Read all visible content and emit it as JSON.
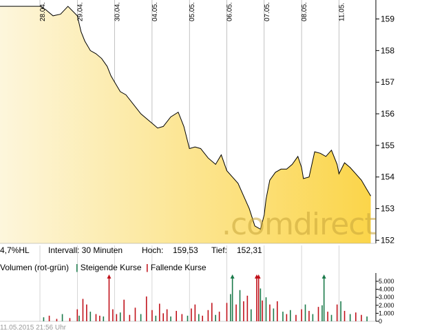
{
  "watermark": ".comdirect",
  "info_bar": {
    "range": "4,7%HL",
    "interval": "Intervall: 30 Minuten",
    "high_label": "Hoch:",
    "high_value": "159,53",
    "low_label": "Tief:",
    "low_value": "152,31"
  },
  "volume_panel": {
    "title": "Volumen (rot-grün)",
    "legend_up": "Steigende Kurse",
    "legend_down": "Fallende Kurse"
  },
  "footer_timestamp": "11.05.2015 21:56 Uhr",
  "colors": {
    "line": "#000000",
    "fill_left": "#fdf6dc",
    "fill_right": "#fbd54a",
    "up": "#1a7a4a",
    "down": "#c0111a",
    "grid": "#999999"
  },
  "chart_data": [
    {
      "type": "area",
      "x_labels": [
        "28.04.",
        "29.04.",
        "30.04.",
        "04.05.",
        "05.05.",
        "06.05.",
        "07.05.",
        "08.05.",
        "11.05."
      ],
      "y_ticks": [
        152,
        153,
        154,
        155,
        156,
        157,
        158,
        159
      ],
      "ylim": [
        151.9,
        159.6
      ],
      "high": 159.53,
      "low": 152.31,
      "series": [
        {
          "x": [
            0,
            0.15,
            0.35,
            0.55,
            0.75,
            1.0,
            1.1,
            1.2,
            1.35,
            1.5,
            1.65,
            1.8,
            1.9,
            2.0,
            2.15,
            2.3,
            2.5,
            2.7,
            2.9,
            3.0,
            3.15,
            3.3,
            3.5,
            3.7,
            3.85,
            4.0,
            4.15,
            4.3,
            4.5,
            4.7,
            4.85,
            5.0,
            5.15,
            5.3,
            5.45,
            5.6,
            5.75,
            5.9,
            6.0,
            6.05,
            6.15,
            6.3,
            6.45,
            6.6,
            6.75,
            6.9,
            7.0,
            7.05,
            7.2,
            7.35,
            7.5,
            7.65,
            7.8,
            7.95,
            8.0,
            8.15,
            8.3,
            8.45,
            8.6,
            8.75,
            8.85
          ],
          "y": [
            159.4,
            159.3,
            159.1,
            159.15,
            159.4,
            159.1,
            158.6,
            158.3,
            158.0,
            157.9,
            157.75,
            157.5,
            157.2,
            157.0,
            156.7,
            156.6,
            156.3,
            156.0,
            155.8,
            155.7,
            155.55,
            155.6,
            155.9,
            156.05,
            155.6,
            154.9,
            154.95,
            154.9,
            154.6,
            154.4,
            154.7,
            154.2,
            154.0,
            153.8,
            153.4,
            153.0,
            152.45,
            152.35,
            152.8,
            153.3,
            153.9,
            154.15,
            154.25,
            154.25,
            154.4,
            154.65,
            154.3,
            153.95,
            154.0,
            154.8,
            154.75,
            154.65,
            154.85,
            154.4,
            154.1,
            154.45,
            154.3,
            154.1,
            153.9,
            153.6,
            153.4
          ]
        }
      ]
    },
    {
      "type": "bar",
      "title": "Volumen (rot-grün)",
      "y_ticks": [
        "0",
        "1.000",
        "2.000",
        "3.000",
        "4.000",
        "5.000"
      ],
      "ylim": [
        0,
        5000
      ],
      "legend": [
        "Steigende Kurse",
        "Fallende Kurse"
      ],
      "volumes": [
        [
          0.1,
          500,
          "up"
        ],
        [
          0.25,
          700,
          "down"
        ],
        [
          0.45,
          300,
          "down"
        ],
        [
          0.6,
          900,
          "up"
        ],
        [
          0.8,
          400,
          "down"
        ],
        [
          1.0,
          1500,
          "down"
        ],
        [
          1.05,
          700,
          "up"
        ],
        [
          1.15,
          2800,
          "down"
        ],
        [
          1.25,
          2100,
          "down"
        ],
        [
          1.35,
          1200,
          "up"
        ],
        [
          1.5,
          900,
          "down"
        ],
        [
          1.6,
          700,
          "down"
        ],
        [
          1.7,
          600,
          "up"
        ],
        [
          1.85,
          6000,
          "down"
        ],
        [
          1.95,
          1500,
          "down"
        ],
        [
          2.05,
          900,
          "down"
        ],
        [
          2.15,
          1100,
          "up"
        ],
        [
          2.25,
          2700,
          "down"
        ],
        [
          2.4,
          800,
          "down"
        ],
        [
          2.55,
          1700,
          "down"
        ],
        [
          2.7,
          900,
          "up"
        ],
        [
          2.85,
          3100,
          "down"
        ],
        [
          3.0,
          1400,
          "down"
        ],
        [
          3.1,
          700,
          "up"
        ],
        [
          3.2,
          2200,
          "down"
        ],
        [
          3.3,
          1000,
          "down"
        ],
        [
          3.4,
          1500,
          "down"
        ],
        [
          3.5,
          600,
          "up"
        ],
        [
          3.65,
          1300,
          "down"
        ],
        [
          3.8,
          900,
          "down"
        ],
        [
          3.95,
          700,
          "up"
        ],
        [
          4.05,
          1600,
          "down"
        ],
        [
          4.15,
          2100,
          "down"
        ],
        [
          4.25,
          900,
          "up"
        ],
        [
          4.35,
          700,
          "down"
        ],
        [
          4.5,
          1400,
          "down"
        ],
        [
          4.6,
          2300,
          "down"
        ],
        [
          4.7,
          800,
          "up"
        ],
        [
          4.8,
          1200,
          "down"
        ],
        [
          5.0,
          2300,
          "down"
        ],
        [
          5.1,
          3400,
          "up"
        ],
        [
          5.15,
          6000,
          "up"
        ],
        [
          5.25,
          2100,
          "down"
        ],
        [
          5.35,
          3900,
          "up"
        ],
        [
          5.45,
          2500,
          "down"
        ],
        [
          5.55,
          3200,
          "down"
        ],
        [
          5.65,
          1500,
          "up"
        ],
        [
          5.8,
          6000,
          "down"
        ],
        [
          5.85,
          5200,
          "down"
        ],
        [
          5.9,
          4100,
          "up"
        ],
        [
          5.95,
          2600,
          "down"
        ],
        [
          6.05,
          3000,
          "up"
        ],
        [
          6.15,
          2100,
          "down"
        ],
        [
          6.25,
          1600,
          "up"
        ],
        [
          6.35,
          2500,
          "down"
        ],
        [
          6.5,
          1200,
          "up"
        ],
        [
          6.6,
          900,
          "down"
        ],
        [
          6.7,
          1400,
          "up"
        ],
        [
          6.85,
          800,
          "down"
        ],
        [
          7.0,
          1500,
          "down"
        ],
        [
          7.1,
          2100,
          "up"
        ],
        [
          7.2,
          1300,
          "down"
        ],
        [
          7.3,
          900,
          "up"
        ],
        [
          7.45,
          1800,
          "down"
        ],
        [
          7.55,
          2000,
          "up"
        ],
        [
          7.6,
          6000,
          "up"
        ],
        [
          7.7,
          1200,
          "down"
        ],
        [
          7.8,
          800,
          "up"
        ],
        [
          7.95,
          2100,
          "down"
        ],
        [
          8.05,
          2500,
          "up"
        ],
        [
          8.15,
          1300,
          "down"
        ],
        [
          8.3,
          900,
          "up"
        ],
        [
          8.45,
          1100,
          "down"
        ],
        [
          8.6,
          800,
          "down"
        ],
        [
          8.75,
          600,
          "up"
        ]
      ]
    }
  ]
}
